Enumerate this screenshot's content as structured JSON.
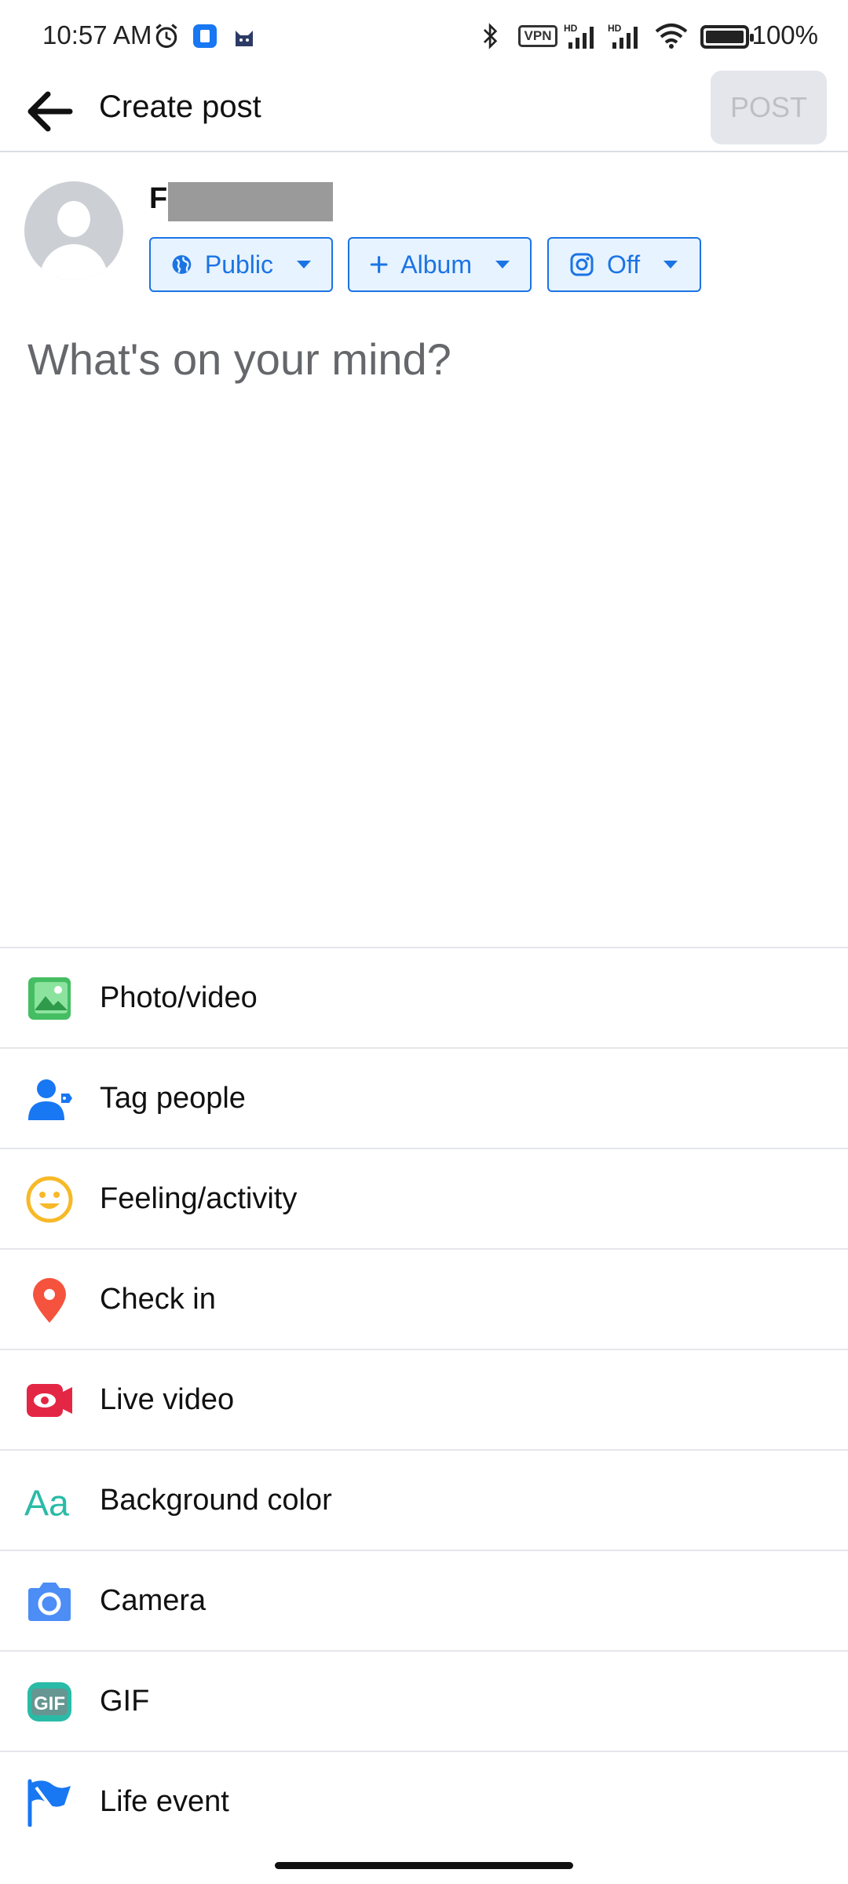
{
  "status_bar": {
    "time": "10:57 AM",
    "vpn": "VPN",
    "battery": "100%"
  },
  "header": {
    "title": "Create post",
    "post_label": "POST"
  },
  "composer": {
    "user_initial": "F",
    "privacy_label": "Public",
    "album_label": "Album",
    "instagram_label": "Off",
    "placeholder": "What's on your mind?"
  },
  "actions": [
    {
      "label": "Photo/video",
      "icon": "photo-icon"
    },
    {
      "label": "Tag people",
      "icon": "tag-people-icon"
    },
    {
      "label": "Feeling/activity",
      "icon": "feeling-icon"
    },
    {
      "label": "Check in",
      "icon": "location-pin-icon"
    },
    {
      "label": "Live video",
      "icon": "live-video-icon"
    },
    {
      "label": "Background color",
      "icon": "background-color-icon"
    },
    {
      "label": "Camera",
      "icon": "camera-icon"
    },
    {
      "label": "GIF",
      "icon": "gif-icon"
    },
    {
      "label": "Life event",
      "icon": "flag-icon"
    }
  ],
  "colors": {
    "accent": "#1b74e4",
    "post_disabled_bg": "#e4e6eb"
  }
}
